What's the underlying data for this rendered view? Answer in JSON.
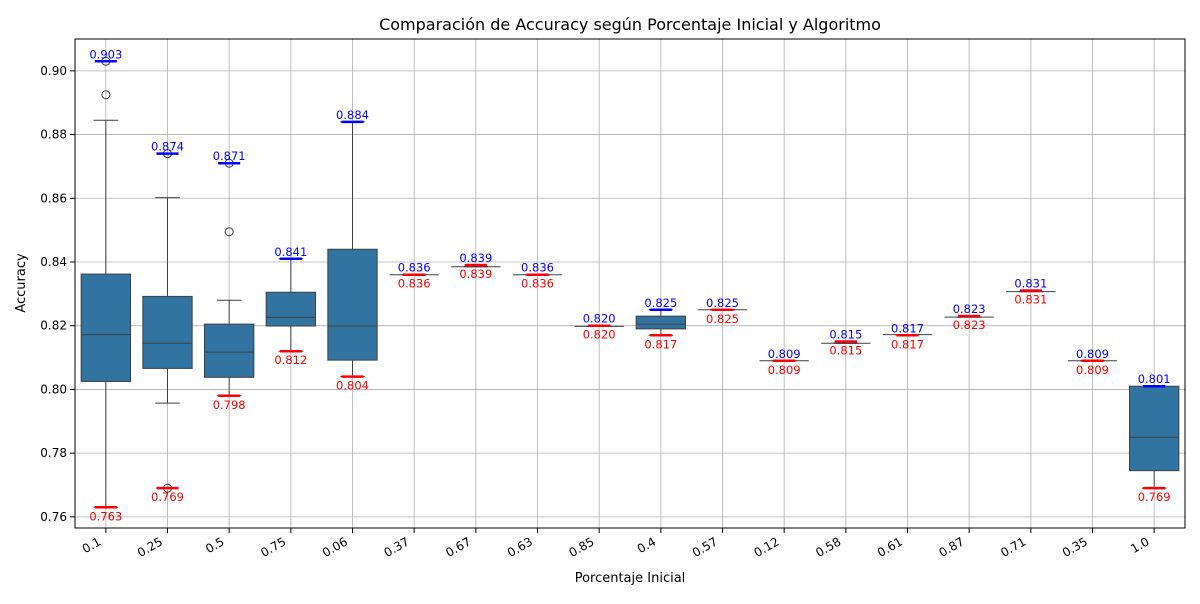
{
  "chart_data": {
    "type": "box",
    "title": "Comparación de Accuracy según Porcentaje Inicial y Algoritmo",
    "xlabel": "Porcentaje Inicial",
    "ylabel": "Accuracy",
    "ylim": [
      0.7565,
      0.91
    ],
    "yticks": [
      0.76,
      0.78,
      0.8,
      0.82,
      0.84,
      0.86,
      0.88,
      0.9
    ],
    "ytick_labels": [
      "0.76",
      "0.78",
      "0.80",
      "0.82",
      "0.84",
      "0.86",
      "0.88",
      "0.90"
    ],
    "grid": true,
    "box_color": "#3274a1",
    "max_color": "#0000ff",
    "min_color": "#ff0000",
    "categories": [
      "0.1",
      "0.25",
      "0.5",
      "0.75",
      "0.06",
      "0.37",
      "0.67",
      "0.63",
      "0.85",
      "0.4",
      "0.57",
      "0.12",
      "0.58",
      "0.61",
      "0.87",
      "0.71",
      "0.35",
      "1.0"
    ],
    "boxes": [
      {
        "q1": 0.8025,
        "median": 0.8172,
        "q3": 0.8362,
        "whisker_low": 0.763,
        "whisker_high": 0.8845,
        "outliers": [
          0.8925,
          0.903
        ]
      },
      {
        "q1": 0.8066,
        "median": 0.8145,
        "q3": 0.8292,
        "whisker_low": 0.7957,
        "whisker_high": 0.8602,
        "outliers": [
          0.769,
          0.874
        ]
      },
      {
        "q1": 0.8038,
        "median": 0.8117,
        "q3": 0.8205,
        "whisker_low": 0.798,
        "whisker_high": 0.828,
        "outliers": [
          0.8495,
          0.871
        ]
      },
      {
        "q1": 0.8199,
        "median": 0.8226,
        "q3": 0.8305,
        "whisker_low": 0.812,
        "whisker_high": 0.841,
        "outliers": []
      },
      {
        "q1": 0.8092,
        "median": 0.8199,
        "q3": 0.844,
        "whisker_low": 0.804,
        "whisker_high": 0.884,
        "outliers": []
      },
      {
        "q1": 0.836,
        "median": 0.836,
        "q3": 0.836,
        "whisker_low": 0.836,
        "whisker_high": 0.836,
        "outliers": []
      },
      {
        "q1": 0.8385,
        "median": 0.8385,
        "q3": 0.8385,
        "whisker_low": 0.8385,
        "whisker_high": 0.8385,
        "outliers": []
      },
      {
        "q1": 0.836,
        "median": 0.836,
        "q3": 0.836,
        "whisker_low": 0.836,
        "whisker_high": 0.836,
        "outliers": []
      },
      {
        "q1": 0.8198,
        "median": 0.8198,
        "q3": 0.8198,
        "whisker_low": 0.8198,
        "whisker_high": 0.8198,
        "outliers": []
      },
      {
        "q1": 0.819,
        "median": 0.8205,
        "q3": 0.823,
        "whisker_low": 0.817,
        "whisker_high": 0.825,
        "outliers": []
      },
      {
        "q1": 0.825,
        "median": 0.825,
        "q3": 0.825,
        "whisker_low": 0.825,
        "whisker_high": 0.825,
        "outliers": []
      },
      {
        "q1": 0.809,
        "median": 0.809,
        "q3": 0.809,
        "whisker_low": 0.809,
        "whisker_high": 0.809,
        "outliers": []
      },
      {
        "q1": 0.8145,
        "median": 0.8145,
        "q3": 0.8145,
        "whisker_low": 0.8145,
        "whisker_high": 0.8145,
        "outliers": []
      },
      {
        "q1": 0.8172,
        "median": 0.8172,
        "q3": 0.8172,
        "whisker_low": 0.8172,
        "whisker_high": 0.8172,
        "outliers": []
      },
      {
        "q1": 0.8227,
        "median": 0.8227,
        "q3": 0.8227,
        "whisker_low": 0.8227,
        "whisker_high": 0.8227,
        "outliers": []
      },
      {
        "q1": 0.8307,
        "median": 0.8307,
        "q3": 0.8307,
        "whisker_low": 0.8307,
        "whisker_high": 0.8307,
        "outliers": []
      },
      {
        "q1": 0.809,
        "median": 0.809,
        "q3": 0.809,
        "whisker_low": 0.809,
        "whisker_high": 0.809,
        "outliers": []
      },
      {
        "q1": 0.7745,
        "median": 0.785,
        "q3": 0.801,
        "whisker_low": 0.769,
        "whisker_high": 0.801,
        "outliers": []
      }
    ],
    "max_markers": [
      0.903,
      0.874,
      0.871,
      0.841,
      0.884,
      0.836,
      0.839,
      0.836,
      0.82,
      0.825,
      0.825,
      0.809,
      0.815,
      0.817,
      0.823,
      0.831,
      0.809,
      0.801
    ],
    "max_labels": [
      "0.903",
      "0.874",
      "0.871",
      "0.841",
      "0.884",
      "0.836",
      "0.839",
      "0.836",
      "0.820",
      "0.825",
      "0.825",
      "0.809",
      "0.815",
      "0.817",
      "0.823",
      "0.831",
      "0.809",
      "0.801"
    ],
    "min_markers": [
      0.763,
      0.769,
      0.798,
      0.812,
      0.804,
      0.836,
      0.839,
      0.836,
      0.82,
      0.817,
      0.825,
      0.809,
      0.815,
      0.817,
      0.823,
      0.831,
      0.809,
      0.769
    ],
    "min_labels": [
      "0.763",
      "0.769",
      "0.798",
      "0.812",
      "0.804",
      "0.836",
      "0.839",
      "0.836",
      "0.820",
      "0.817",
      "0.825",
      "0.809",
      "0.815",
      "0.817",
      "0.823",
      "0.831",
      "0.809",
      "0.769"
    ]
  }
}
